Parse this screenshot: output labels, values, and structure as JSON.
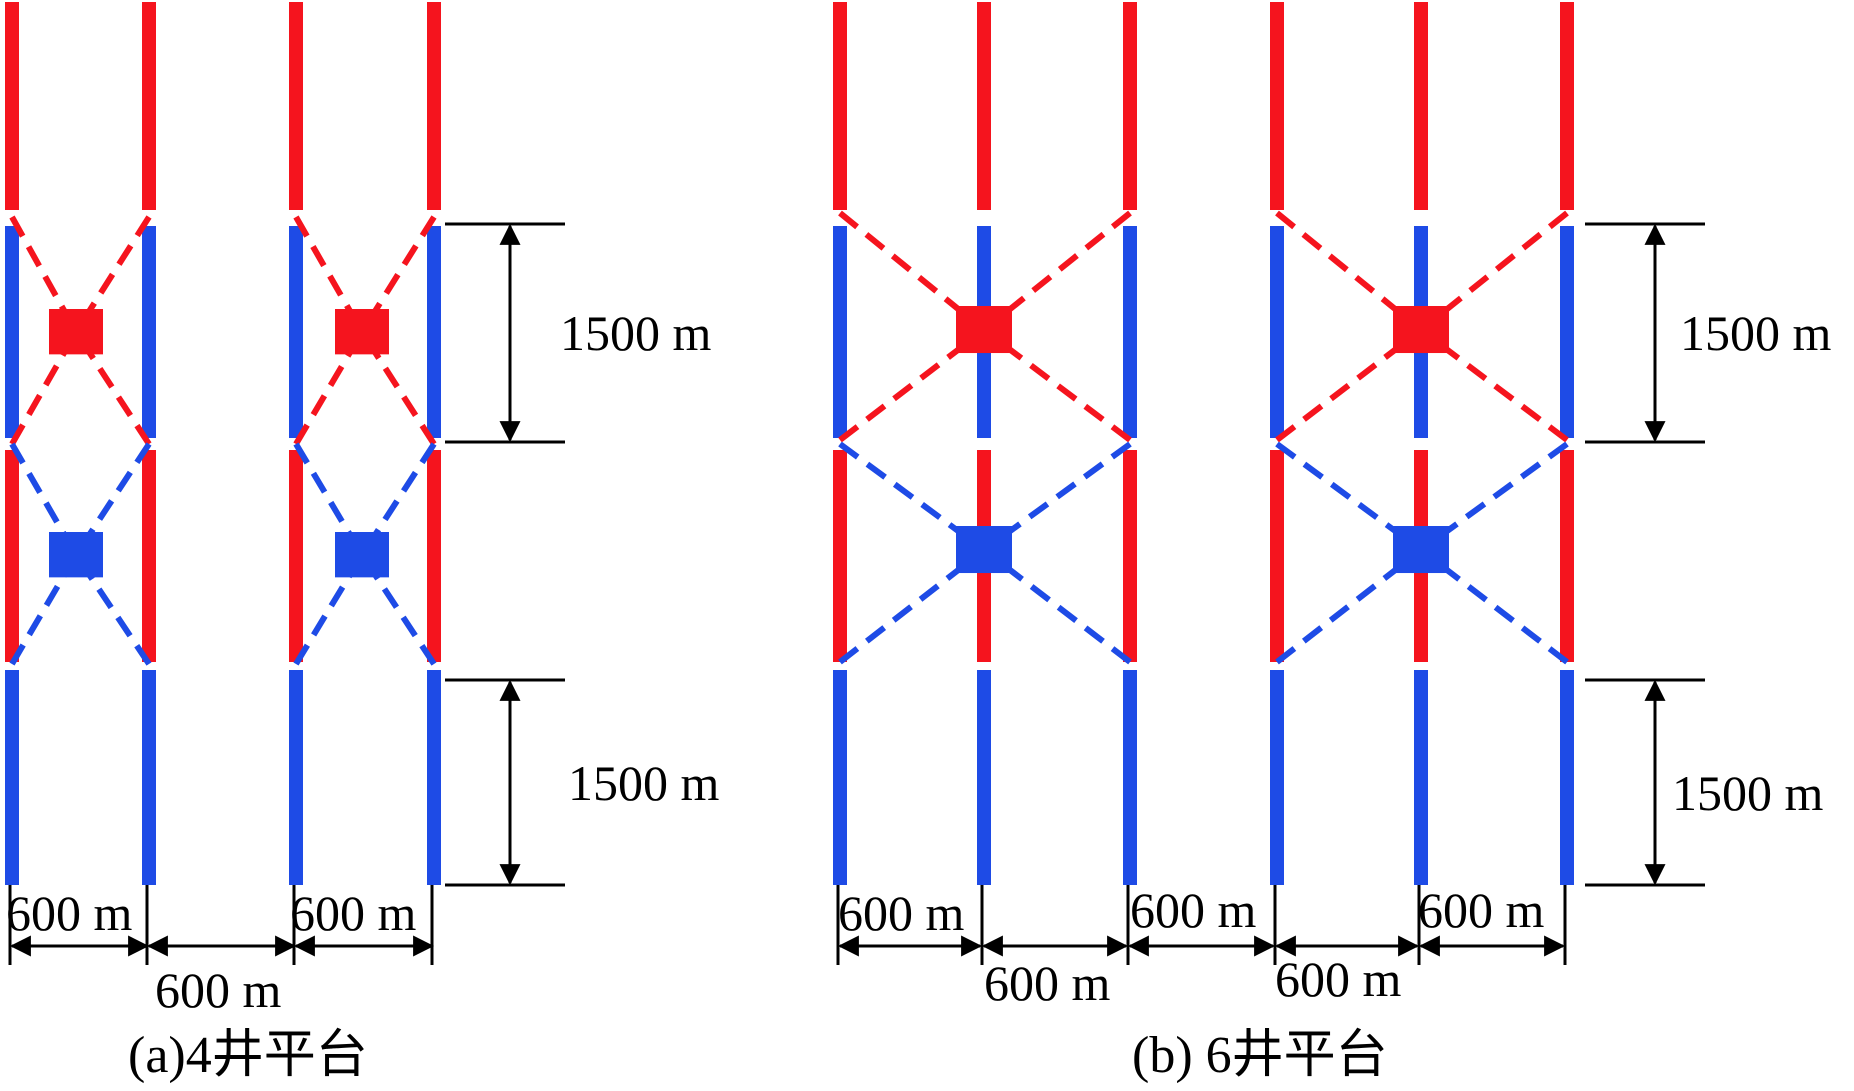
{
  "colors": {
    "red": "#f5141e",
    "blue": "#1e4be6",
    "black": "#000000"
  },
  "panel_a": {
    "caption": "(a)4井平台",
    "vertical_dims": [
      "1500 m",
      "1500 m"
    ],
    "horizontal_dims": [
      "600 m",
      "600 m",
      "600 m"
    ]
  },
  "panel_b": {
    "caption": "(b) 6井平台",
    "vertical_dims": [
      "1500 m",
      "1500 m"
    ],
    "horizontal_dims": [
      "600 m",
      "600 m",
      "600 m",
      "600 m",
      "600 m"
    ]
  }
}
